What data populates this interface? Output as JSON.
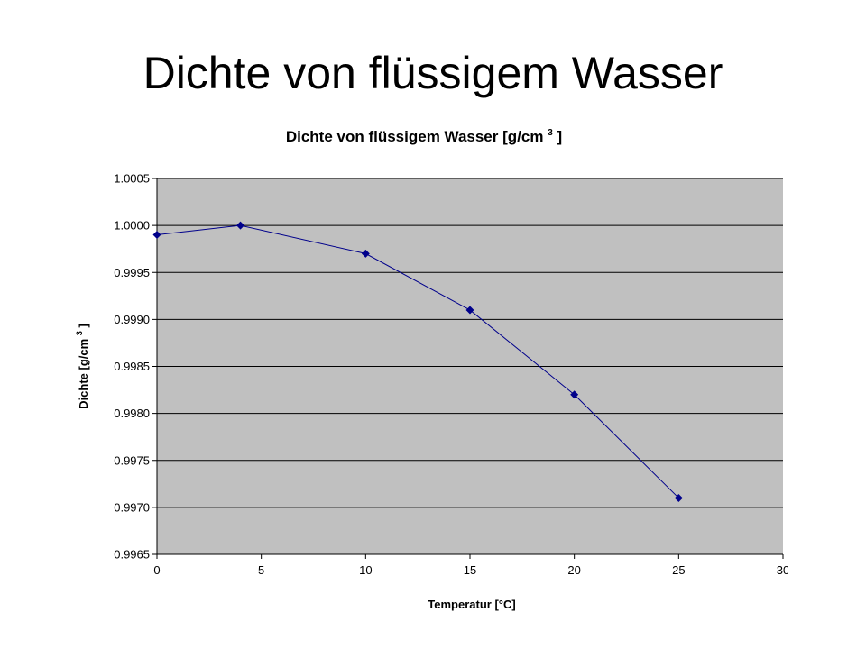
{
  "slide": {
    "title": "Dichte von flüssigem Wasser"
  },
  "chart_data": {
    "type": "line",
    "title": "Dichte von flüssigem Wasser",
    "title_unit_prefix": "[g/cm",
    "title_unit_sup": "3",
    "title_unit_suffix": "]",
    "xlabel": "Temperatur [°C]",
    "ylabel_prefix": "Dichte [g/cm",
    "ylabel_sup": "3",
    "ylabel_suffix": "]",
    "xlim": [
      0,
      30
    ],
    "ylim": [
      0.9965,
      1.0005
    ],
    "x_ticks": [
      "0",
      "5",
      "10",
      "15",
      "20",
      "25",
      "30"
    ],
    "y_ticks": [
      "1.0005",
      "1.0000",
      "0.9995",
      "0.9990",
      "0.9985",
      "0.9980",
      "0.9975",
      "0.9970",
      "0.9965"
    ],
    "grid": "horizontal",
    "legend": "none",
    "marker": "diamond",
    "series": [
      {
        "x": [
          0,
          4,
          10,
          15,
          20,
          25
        ],
        "values": [
          0.9999,
          1.0,
          0.9997,
          0.9991,
          0.9982,
          0.9971
        ],
        "color": "#00008b"
      }
    ],
    "plot_background": "#c0c0c0",
    "chart_background": "#ffffff"
  }
}
